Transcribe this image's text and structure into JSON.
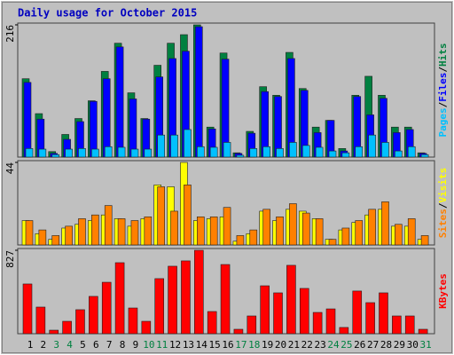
{
  "chart_data": [
    {
      "type": "bar",
      "title": "Daily usage for October 2015",
      "ylim": [
        0,
        216
      ],
      "yticks": [
        216
      ],
      "legend_separator": "/",
      "series": [
        {
          "name": "Hits",
          "color": "#008040",
          "values": [
            128,
            71,
            9,
            37,
            63,
            92,
            140,
            186,
            105,
            63,
            150,
            186,
            200,
            216,
            49,
            170,
            7,
            42,
            115,
            101,
            171,
            112,
            49,
            60,
            14,
            101,
            132,
            101,
            49,
            49,
            7
          ]
        },
        {
          "name": "Files",
          "color": "#0000ff",
          "values": [
            122,
            62,
            6,
            29,
            58,
            91,
            128,
            180,
            95,
            62,
            131,
            161,
            173,
            213,
            46,
            160,
            6,
            39,
            107,
            99,
            161,
            109,
            40,
            60,
            10,
            99,
            69,
            96,
            40,
            45,
            6
          ]
        },
        {
          "name": "Pages",
          "color": "#00c0ff",
          "values": [
            14,
            13,
            4,
            13,
            14,
            13,
            17,
            16,
            13,
            13,
            36,
            36,
            45,
            17,
            16,
            24,
            3,
            14,
            17,
            14,
            24,
            19,
            16,
            10,
            7,
            17,
            36,
            24,
            10,
            17,
            4
          ]
        }
      ]
    },
    {
      "type": "bar",
      "ylim": [
        0,
        44
      ],
      "yticks": [
        44
      ],
      "legend_separator": "/",
      "series": [
        {
          "name": "Visits",
          "color": "#ffff00",
          "values": [
            13,
            6,
            3,
            9,
            11,
            13,
            16,
            14,
            10,
            14,
            32,
            31,
            44,
            13,
            14,
            15,
            2,
            6,
            18,
            13,
            19,
            18,
            14,
            3,
            8,
            12,
            16,
            19,
            10,
            10,
            3
          ]
        },
        {
          "name": "Sites",
          "color": "#ff8000",
          "values": [
            13,
            8,
            5,
            10,
            14,
            16,
            21,
            14,
            13,
            15,
            31,
            18,
            32,
            15,
            15,
            20,
            5,
            8,
            19,
            15,
            22,
            17,
            14,
            3,
            9,
            13,
            19,
            23,
            11,
            14,
            5
          ]
        }
      ]
    },
    {
      "type": "bar",
      "ylim": [
        0,
        827
      ],
      "yticks": [
        827
      ],
      "categories": [
        "1",
        "2",
        "3",
        "4",
        "5",
        "6",
        "7",
        "8",
        "9",
        "10",
        "11",
        "12",
        "13",
        "14",
        "15",
        "16",
        "17",
        "18",
        "19",
        "20",
        "21",
        "22",
        "23",
        "24",
        "25",
        "26",
        "27",
        "28",
        "29",
        "30",
        "31"
      ],
      "category_colors": [
        "#000000",
        "#000000",
        "#008040",
        "#008040",
        "#000000",
        "#000000",
        "#000000",
        "#000000",
        "#000000",
        "#008040",
        "#008040",
        "#000000",
        "#000000",
        "#000000",
        "#000000",
        "#000000",
        "#008040",
        "#008040",
        "#000000",
        "#000000",
        "#000000",
        "#000000",
        "#000000",
        "#008040",
        "#008040",
        "#000000",
        "#000000",
        "#000000",
        "#000000",
        "#000000",
        "#008040"
      ],
      "series": [
        {
          "name": "KBytes",
          "color": "#ff0000",
          "values": [
            493,
            264,
            35,
            123,
            238,
            370,
            510,
            704,
            255,
            123,
            546,
            669,
            722,
            827,
            220,
            686,
            44,
            176,
            475,
            405,
            678,
            449,
            211,
            246,
            62,
            423,
            308,
            405,
            176,
            176,
            44
          ]
        }
      ]
    }
  ]
}
